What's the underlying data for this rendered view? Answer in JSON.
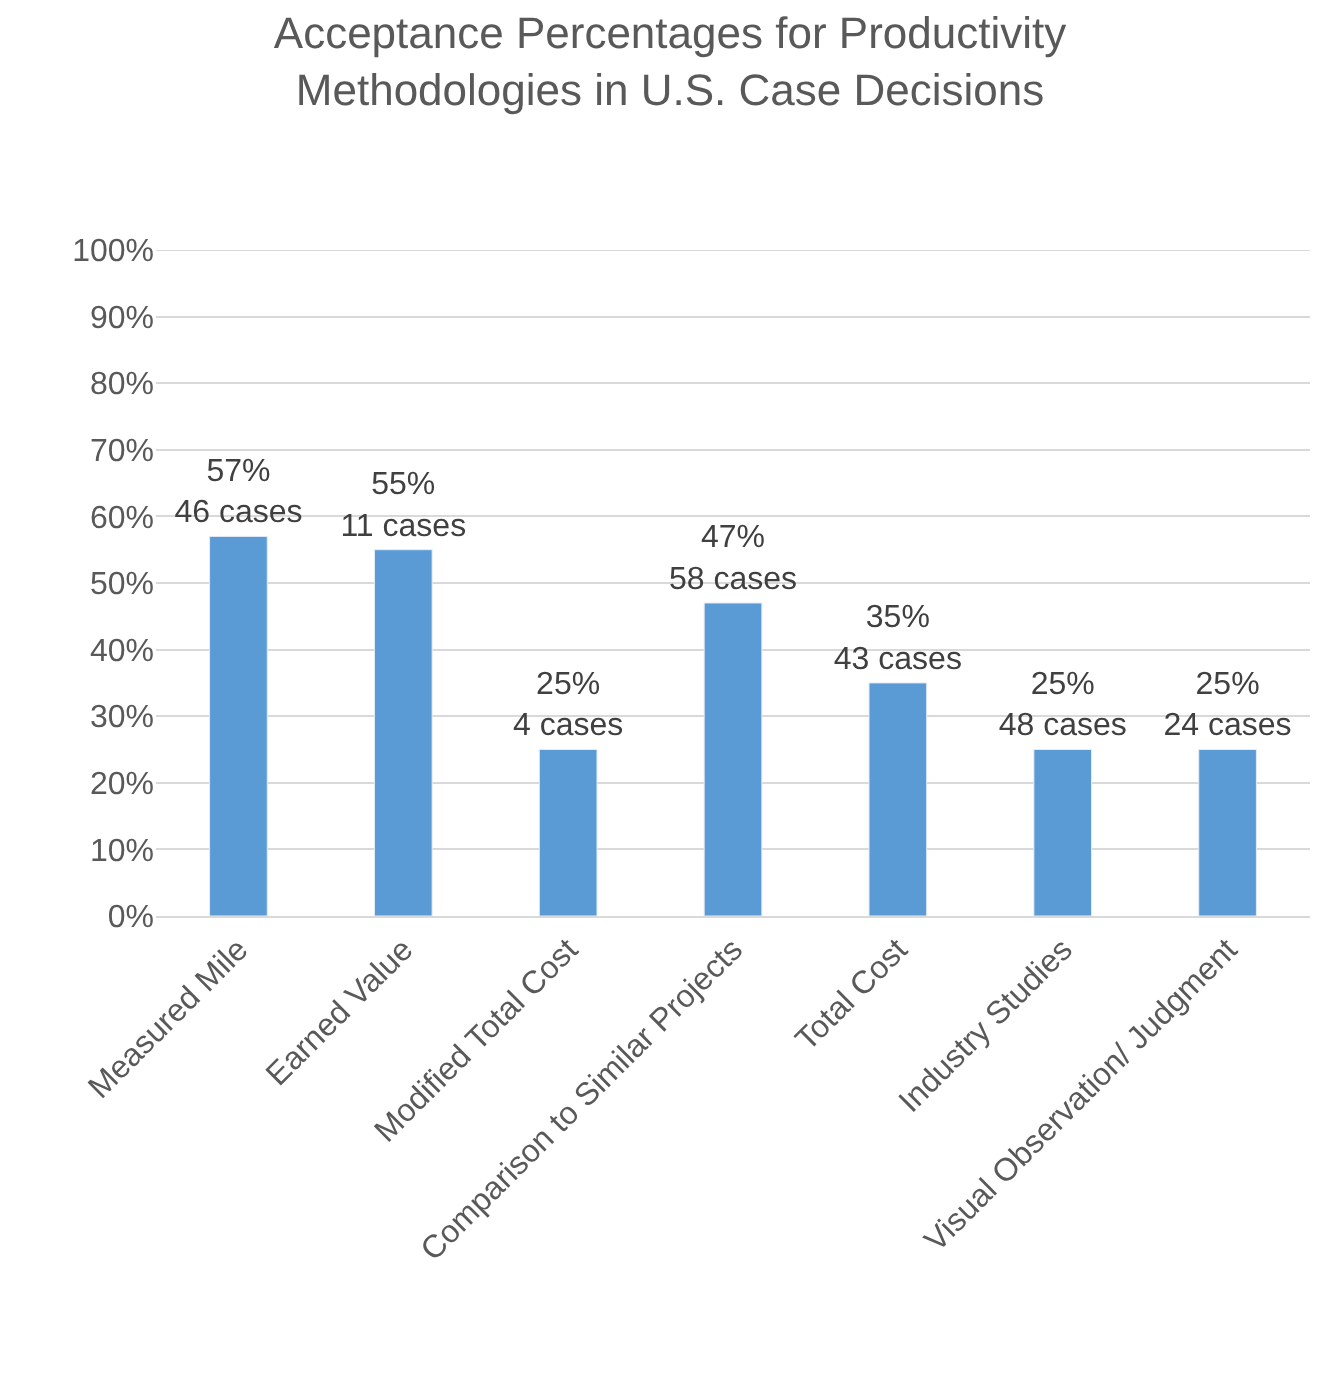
{
  "chart_data": {
    "type": "bar",
    "title": "Acceptance Percentages for Productivity\nMethodologies in U.S. Case Decisions",
    "categories": [
      "Measured Mile",
      "Earned Value",
      "Modified Total Cost",
      "Comparison to Similar Projects",
      "Total Cost",
      "Industry Studies",
      "Visual Observation/ Judgment"
    ],
    "values": [
      57,
      55,
      25,
      47,
      35,
      25,
      25
    ],
    "value_labels": [
      "57%\n46 cases",
      "55%\n11 cases",
      "25%\n4 cases",
      "47%\n58 cases",
      "35%\n43 cases",
      "25%\n48 cases",
      "25%\n24 cases"
    ],
    "color": "#5b9bd5",
    "ylim": [
      0,
      100
    ],
    "yticks": [
      {
        "value": 0,
        "label": "0%"
      },
      {
        "value": 10,
        "label": "10%"
      },
      {
        "value": 20,
        "label": "20%"
      },
      {
        "value": 30,
        "label": "30%"
      },
      {
        "value": 40,
        "label": "40%"
      },
      {
        "value": 50,
        "label": "50%"
      },
      {
        "value": 60,
        "label": "60%"
      },
      {
        "value": 70,
        "label": "70%"
      },
      {
        "value": 80,
        "label": "80%"
      },
      {
        "value": 90,
        "label": "90%"
      },
      {
        "value": 100,
        "label": "100%"
      }
    ],
    "grid": "y"
  }
}
